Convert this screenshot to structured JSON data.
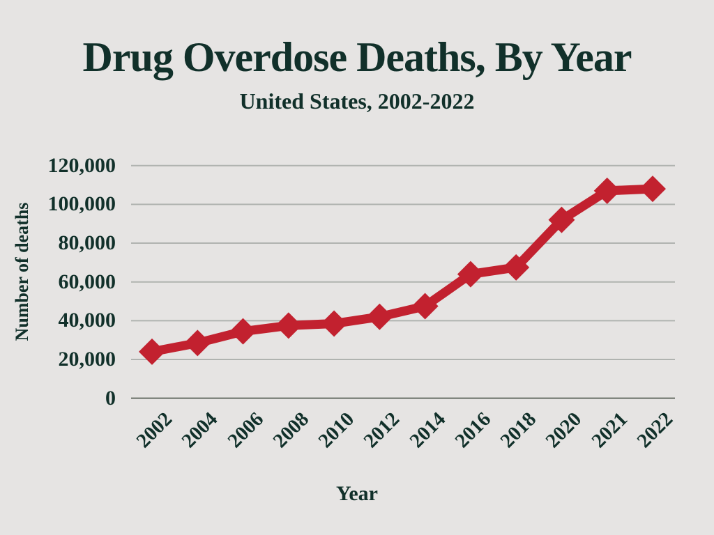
{
  "chart_data": {
    "type": "line",
    "title": "Drug Overdose Deaths, By Year",
    "subtitle": "United States, 2002-2022",
    "xlabel": "Year",
    "ylabel": "Number of deaths",
    "categories": [
      "2002",
      "2004",
      "2006",
      "2008",
      "2010",
      "2012",
      "2014",
      "2016",
      "2018",
      "2020",
      "2021",
      "2022"
    ],
    "values": [
      24000,
      28500,
      34500,
      37500,
      38500,
      42000,
      47500,
      64000,
      67500,
      92000,
      107000,
      108000
    ],
    "ylim": [
      0,
      120000
    ],
    "ytick_values": [
      120000,
      100000,
      80000,
      60000,
      40000,
      20000,
      0
    ],
    "ytick_labels": [
      "120,000",
      "100,000",
      "80,000",
      "60,000",
      "40,000",
      "20,000",
      "0"
    ],
    "grid": "horizontal",
    "legend": "none",
    "marker": "diamond"
  },
  "colors": {
    "background": "#e6e4e3",
    "text": "#11302a",
    "line": "#c2212f",
    "gridline": "#b0b3b0",
    "axis_line": "#81867f"
  }
}
